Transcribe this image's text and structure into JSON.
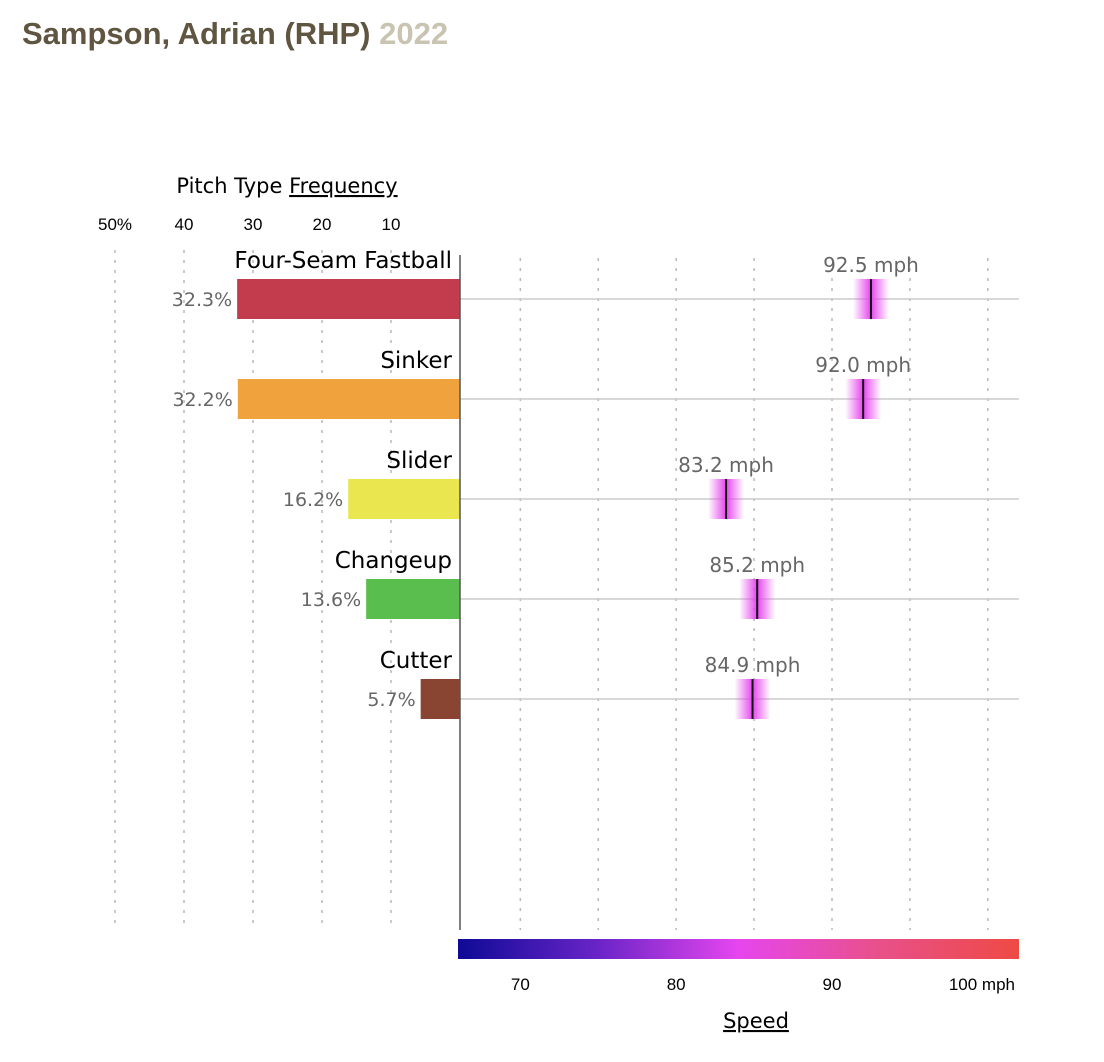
{
  "header": {
    "player": "Sampson, Adrian (RHP)",
    "season": "2022"
  },
  "frequency_axis": {
    "title_prefix": "Pitch Type",
    "title_emphasis": "Frequency"
  },
  "speed_axis": {
    "title": "Speed"
  },
  "chart_data": {
    "type": "bar",
    "title": "",
    "categories": [
      "Four-Seam Fastball",
      "Sinker",
      "Slider",
      "Changeup",
      "Cutter"
    ],
    "series": [
      {
        "name": "Frequency",
        "unit": "%",
        "values": [
          32.3,
          32.2,
          16.2,
          13.6,
          5.7
        ],
        "labels": [
          "32.3%",
          "32.2%",
          "16.2%",
          "13.6%",
          "5.7%"
        ]
      },
      {
        "name": "Speed",
        "unit": "mph",
        "values": [
          92.5,
          92.0,
          83.2,
          85.2,
          84.9
        ],
        "labels": [
          "92.5 mph",
          "92.0 mph",
          "83.2 mph",
          "85.2 mph",
          "84.9 mph"
        ]
      }
    ],
    "bar_colors": [
      "#c23c4e",
      "#f0a23c",
      "#eae650",
      "#5abe4e",
      "#8a4432"
    ],
    "frequency_axis": {
      "ticks": [
        50,
        40,
        30,
        20,
        10
      ],
      "tick_labels": [
        "50%",
        "40",
        "30",
        "20",
        "10"
      ],
      "range": [
        0,
        50
      ],
      "direction": "right-to-left"
    },
    "speed_axis": {
      "range": [
        66,
        102
      ],
      "gridlines": [
        70,
        75,
        80,
        85,
        90,
        95,
        100
      ],
      "ticks": [
        70,
        80,
        90,
        100
      ],
      "tick_labels": [
        "70",
        "80",
        "90",
        "100 mph"
      ],
      "colorscale": [
        "#0e0a96",
        "#6a24c8",
        "#e646ee",
        "#e8508a",
        "#ee4a44"
      ]
    },
    "grid": true,
    "legend": "none"
  }
}
